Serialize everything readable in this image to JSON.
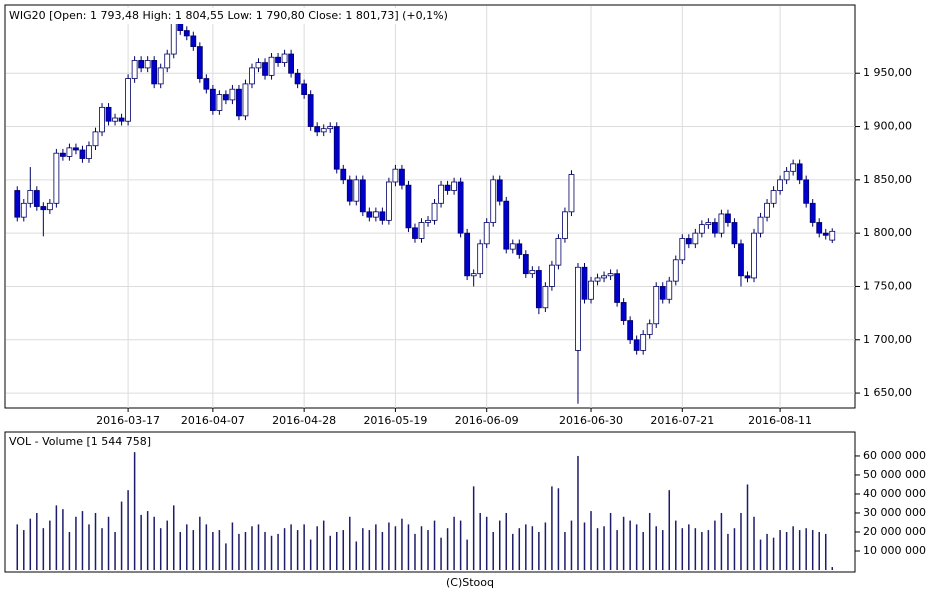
{
  "chart_data": [
    {
      "type": "candlestick",
      "title": "WIG20 [Open: 1 793,48 High: 1 804,55 Low: 1 790,80 Close: 1 801,73] (+0,1%)",
      "categories": [
        null,
        null,
        null,
        null,
        null,
        null,
        null,
        null,
        null,
        null,
        null,
        null,
        null,
        null,
        null,
        null,
        null,
        "2016-03-17",
        null,
        null,
        null,
        null,
        null,
        null,
        null,
        null,
        null,
        null,
        null,
        null,
        "2016-04-07",
        null,
        null,
        null,
        null,
        null,
        null,
        null,
        null,
        null,
        null,
        null,
        null,
        null,
        "2016-04-28",
        null,
        null,
        null,
        null,
        null,
        null,
        null,
        null,
        null,
        null,
        null,
        null,
        null,
        "2016-05-19",
        null,
        null,
        null,
        null,
        null,
        null,
        null,
        null,
        null,
        null,
        null,
        null,
        null,
        "2016-06-09",
        null,
        null,
        null,
        null,
        null,
        null,
        null,
        null,
        null,
        null,
        null,
        null,
        null,
        null,
        null,
        "2016-06-30",
        null,
        null,
        null,
        null,
        null,
        null,
        null,
        null,
        null,
        null,
        null,
        null,
        null,
        "2016-07-21",
        null,
        null,
        null,
        null,
        null,
        null,
        null,
        null,
        null,
        null,
        null,
        null,
        null,
        null,
        "2016-08-11",
        null,
        null,
        null,
        null,
        null,
        null,
        null,
        null
      ],
      "open": [
        1840,
        1815,
        1828,
        1840,
        1825,
        1822,
        1828,
        1875,
        1872,
        1880,
        1878,
        1870,
        1882,
        1895,
        1918,
        1905,
        1908,
        1905,
        1945,
        1962,
        1955,
        1962,
        1940,
        1955,
        1968,
        1998,
        1990,
        1985,
        1975,
        1945,
        1935,
        1915,
        1930,
        1925,
        1935,
        1910,
        1940,
        1955,
        1960,
        1948,
        1965,
        1960,
        1968,
        1950,
        1940,
        1930,
        1900,
        1895,
        1898,
        1900,
        1860,
        1850,
        1830,
        1850,
        1820,
        1815,
        1820,
        1812,
        1848,
        1860,
        1845,
        1805,
        1795,
        1810,
        1812,
        1828,
        1845,
        1840,
        1848,
        1800,
        1760,
        1762,
        1790,
        1810,
        1850,
        1830,
        1785,
        1790,
        1780,
        1762,
        1765,
        1730,
        1750,
        1770,
        1795,
        1820,
        1690,
        1768,
        1738,
        1755,
        1758,
        1760,
        1762,
        1735,
        1718,
        1700,
        1690,
        1705,
        1715,
        1750,
        1738,
        1755,
        1775,
        1795,
        1790,
        1800,
        1808,
        1810,
        1800,
        1818,
        1810,
        1790,
        1760,
        1758,
        1800,
        1815,
        1828,
        1840,
        1850,
        1858,
        1865,
        1850,
        1828,
        1810,
        1800,
        1793.48
      ],
      "high": [
        1844,
        1832,
        1862,
        1844,
        1829,
        1832,
        1879,
        1879,
        1884,
        1884,
        1882,
        1886,
        1899,
        1922,
        1922,
        1912,
        1912,
        1949,
        1966,
        1966,
        1966,
        1966,
        1959,
        1972,
        2002,
        2002,
        1994,
        1989,
        1979,
        1949,
        1939,
        1934,
        1934,
        1939,
        1939,
        1944,
        1959,
        1964,
        1964,
        1969,
        1969,
        1972,
        1972,
        1954,
        1944,
        1934,
        1904,
        1902,
        1904,
        1904,
        1864,
        1854,
        1854,
        1854,
        1824,
        1824,
        1824,
        1852,
        1864,
        1864,
        1849,
        1809,
        1814,
        1816,
        1832,
        1849,
        1849,
        1852,
        1852,
        1804,
        1766,
        1794,
        1814,
        1854,
        1854,
        1834,
        1794,
        1794,
        1784,
        1769,
        1769,
        1754,
        1774,
        1799,
        1824,
        1859,
        1772,
        1772,
        1759,
        1762,
        1764,
        1766,
        1766,
        1739,
        1722,
        1704,
        1709,
        1719,
        1754,
        1754,
        1759,
        1779,
        1799,
        1799,
        1804,
        1812,
        1814,
        1814,
        1822,
        1822,
        1814,
        1794,
        1764,
        1804,
        1819,
        1832,
        1844,
        1854,
        1862,
        1869,
        1869,
        1854,
        1832,
        1814,
        1804,
        1804.55
      ],
      "low": [
        1811,
        1811,
        1824,
        1821,
        1797,
        1818,
        1824,
        1868,
        1868,
        1874,
        1866,
        1866,
        1878,
        1891,
        1901,
        1901,
        1901,
        1901,
        1941,
        1951,
        1951,
        1936,
        1936,
        1951,
        1964,
        1986,
        1981,
        1971,
        1941,
        1931,
        1911,
        1911,
        1921,
        1921,
        1906,
        1906,
        1936,
        1951,
        1944,
        1944,
        1956,
        1956,
        1946,
        1936,
        1926,
        1896,
        1891,
        1891,
        1894,
        1856,
        1846,
        1826,
        1826,
        1816,
        1811,
        1811,
        1808,
        1808,
        1844,
        1841,
        1801,
        1791,
        1791,
        1806,
        1808,
        1824,
        1836,
        1836,
        1796,
        1756,
        1750,
        1758,
        1786,
        1806,
        1826,
        1781,
        1781,
        1776,
        1758,
        1758,
        1724,
        1726,
        1746,
        1766,
        1791,
        1816,
        1640,
        1734,
        1734,
        1751,
        1754,
        1756,
        1731,
        1714,
        1696,
        1686,
        1686,
        1701,
        1711,
        1734,
        1734,
        1751,
        1771,
        1786,
        1786,
        1796,
        1804,
        1796,
        1796,
        1806,
        1786,
        1750,
        1754,
        1754,
        1796,
        1811,
        1824,
        1836,
        1846,
        1854,
        1846,
        1824,
        1806,
        1796,
        1794,
        1790.8
      ],
      "close": [
        1815,
        1828,
        1840,
        1825,
        1822,
        1828,
        1875,
        1872,
        1880,
        1878,
        1870,
        1882,
        1895,
        1918,
        1905,
        1908,
        1905,
        1945,
        1962,
        1955,
        1962,
        1940,
        1955,
        1968,
        1998,
        1990,
        1985,
        1975,
        1945,
        1935,
        1915,
        1930,
        1925,
        1935,
        1910,
        1940,
        1955,
        1960,
        1948,
        1965,
        1960,
        1968,
        1950,
        1940,
        1930,
        1900,
        1895,
        1898,
        1900,
        1860,
        1850,
        1830,
        1850,
        1820,
        1815,
        1820,
        1812,
        1848,
        1860,
        1845,
        1805,
        1795,
        1810,
        1812,
        1828,
        1845,
        1840,
        1848,
        1800,
        1760,
        1762,
        1790,
        1810,
        1850,
        1830,
        1785,
        1790,
        1780,
        1762,
        1765,
        1730,
        1750,
        1770,
        1795,
        1820,
        1855,
        1768,
        1738,
        1755,
        1758,
        1760,
        1762,
        1735,
        1718,
        1700,
        1690,
        1705,
        1715,
        1750,
        1738,
        1755,
        1775,
        1795,
        1790,
        1800,
        1808,
        1810,
        1800,
        1818,
        1810,
        1790,
        1760,
        1758,
        1800,
        1815,
        1828,
        1840,
        1850,
        1858,
        1865,
        1850,
        1828,
        1810,
        1800,
        1798,
        1801.73
      ],
      "up_color": "#ffffff",
      "down_color": "#0000cc",
      "outline_color": "#000066",
      "ylim": [
        1636,
        2014
      ],
      "yticks": [
        {
          "value": 1650,
          "label": "1 650,00"
        },
        {
          "value": 1700,
          "label": "1 700,00"
        },
        {
          "value": 1750,
          "label": "1 750,00"
        },
        {
          "value": 1800,
          "label": "1 800,00"
        },
        {
          "value": 1850,
          "label": "1 850,00"
        },
        {
          "value": 1900,
          "label": "1 900,00"
        },
        {
          "value": 1950,
          "label": "1 950,00"
        }
      ],
      "grid": true
    },
    {
      "type": "bar",
      "title": "VOL - Volume [1 544 758]",
      "values": [
        24000000,
        21000000,
        27000000,
        30000000,
        22000000,
        26000000,
        34000000,
        32000000,
        20000000,
        28000000,
        31000000,
        24000000,
        30000000,
        22000000,
        28000000,
        20000000,
        36000000,
        42000000,
        62000000,
        29000000,
        31000000,
        28000000,
        22000000,
        26000000,
        34000000,
        20000000,
        24000000,
        21000000,
        28000000,
        24000000,
        20000000,
        21000000,
        14000000,
        25000000,
        19000000,
        20000000,
        23000000,
        24000000,
        20000000,
        18000000,
        19000000,
        22000000,
        24000000,
        21000000,
        24000000,
        16000000,
        23000000,
        26000000,
        18000000,
        20000000,
        21000000,
        28000000,
        15000000,
        22000000,
        21000000,
        24000000,
        20000000,
        25000000,
        23000000,
        27000000,
        24000000,
        19000000,
        23000000,
        21000000,
        26000000,
        17000000,
        22000000,
        28000000,
        26000000,
        16000000,
        44000000,
        30000000,
        28000000,
        20000000,
        26000000,
        30000000,
        19000000,
        22000000,
        24000000,
        23000000,
        20000000,
        25000000,
        44000000,
        43000000,
        20000000,
        26000000,
        60000000,
        25000000,
        31000000,
        22000000,
        23000000,
        30000000,
        21000000,
        28000000,
        26000000,
        24000000,
        20000000,
        30000000,
        23000000,
        21000000,
        42000000,
        26000000,
        22000000,
        24000000,
        22000000,
        20000000,
        21000000,
        26000000,
        30000000,
        19000000,
        22000000,
        30000000,
        45000000,
        28000000,
        16000000,
        19000000,
        17000000,
        21000000,
        20000000,
        23000000,
        21000000,
        22000000,
        21000000,
        20000000,
        19000000,
        1544758
      ],
      "color": "#1c1c6b",
      "ylim": [
        0,
        72600000
      ],
      "yticks": [
        {
          "value": 10000000,
          "label": "10 000 000"
        },
        {
          "value": 20000000,
          "label": "20 000 000"
        },
        {
          "value": 30000000,
          "label": "30 000 000"
        },
        {
          "value": 40000000,
          "label": "40 000 000"
        },
        {
          "value": 50000000,
          "label": "50 000 000"
        },
        {
          "value": 60000000,
          "label": "60 000 000"
        }
      ],
      "grid": false
    }
  ],
  "footer": "(C)Stooq"
}
